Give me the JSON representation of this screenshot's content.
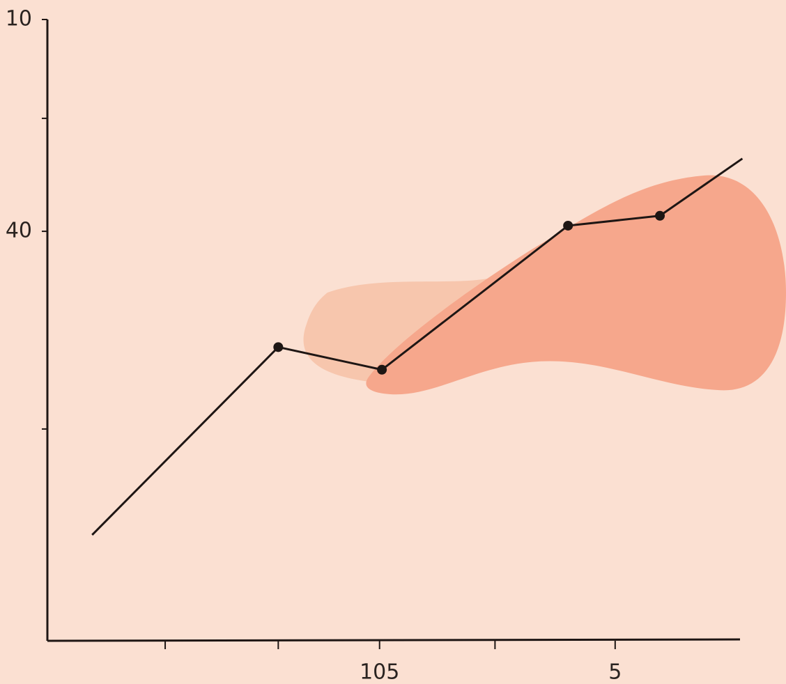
{
  "chart_data": {
    "type": "line",
    "x": [
      227,
      148,
      104,
      25,
      -14,
      -49
    ],
    "values": [
      83,
      56.4,
      59.6,
      39.2,
      37.8,
      29.7
    ],
    "color": "#1e1614",
    "xlim": [
      246,
      -48
    ],
    "xticks": [
      {
        "value": 196,
        "label": null
      },
      {
        "value": 148,
        "label": null
      },
      105,
      {
        "value": 56,
        "label": null
      },
      5
    ],
    "ylim": [
      98,
      10
    ],
    "yticks": [
      10,
      {
        "value": 24,
        "label": null
      },
      40,
      {
        "value": 68,
        "label": null
      }
    ]
  }
}
